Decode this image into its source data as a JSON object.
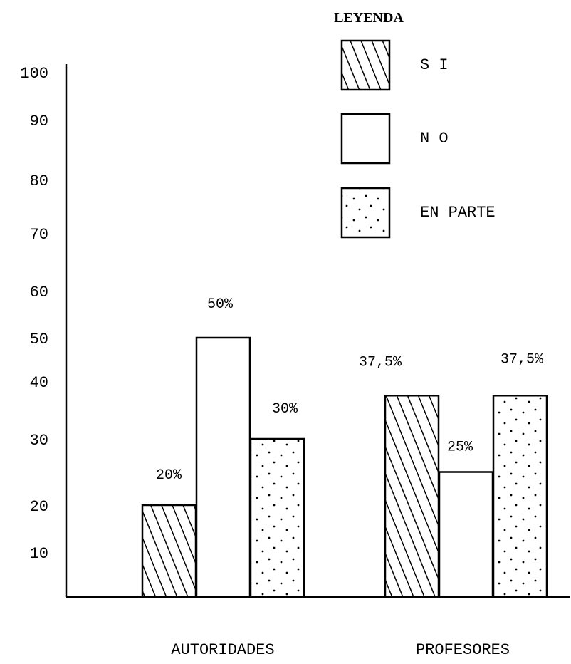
{
  "chart_data": {
    "type": "bar",
    "categories": [
      "AUTORIDADES",
      "PROFESORES"
    ],
    "series": [
      {
        "name": "S I",
        "values": [
          20,
          37.5
        ],
        "labels": [
          "20%",
          "37,5%"
        ],
        "pattern": "hatch"
      },
      {
        "name": "N O",
        "values": [
          50,
          25
        ],
        "labels": [
          "50%",
          "25%"
        ],
        "pattern": "plain"
      },
      {
        "name": "EN PARTE",
        "values": [
          30,
          37.5
        ],
        "labels": [
          "30%",
          "37,5%"
        ],
        "pattern": "dots"
      }
    ],
    "yticks": [
      10,
      20,
      30,
      40,
      50,
      60,
      70,
      80,
      90,
      100
    ],
    "ylim": [
      0,
      100
    ],
    "legend": {
      "title": "LEYENDA",
      "placement": "top-right"
    },
    "grid": false,
    "colors": {
      "ink": "#000000",
      "fill": "#ffffff"
    }
  }
}
